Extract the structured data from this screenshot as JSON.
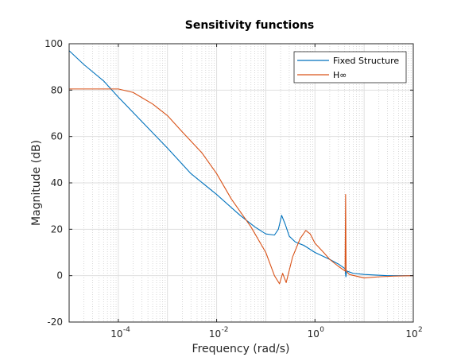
{
  "chart_data": {
    "type": "line",
    "title": "Sensitivity functions",
    "xlabel": "Frequency  (rad/s)",
    "ylabel": "Magnitude (dB)",
    "xscale": "log",
    "xlim": [
      1e-05,
      100
    ],
    "ylim": [
      -20,
      100
    ],
    "x_ticks": [
      {
        "mantissa": "10",
        "exponent": "-4",
        "value": 0.0001
      },
      {
        "mantissa": "10",
        "exponent": "-2",
        "value": 0.01
      },
      {
        "mantissa": "10",
        "exponent": "0",
        "value": 1
      },
      {
        "mantissa": "10",
        "exponent": "2",
        "value": 100
      }
    ],
    "y_ticks": [
      "-20",
      "0",
      "20",
      "40",
      "60",
      "80",
      "100"
    ],
    "grid": true,
    "minor_grid": true,
    "legend_position": "top-right",
    "series": [
      {
        "name": "Fixed Structure",
        "color": "#0072BD",
        "x": [
          1e-05,
          2e-05,
          5e-05,
          0.0001,
          0.0003,
          0.001,
          0.003,
          0.01,
          0.03,
          0.06,
          0.1,
          0.15,
          0.18,
          0.21,
          0.25,
          0.3,
          0.4,
          0.6,
          1,
          2,
          3,
          4.1,
          4.25,
          4.4,
          6,
          10,
          30,
          100
        ],
        "y": [
          97,
          91,
          84,
          77,
          66.5,
          55,
          44,
          35,
          26,
          21,
          18,
          17.5,
          20,
          26,
          22,
          17,
          14.5,
          13,
          10,
          7,
          5,
          3,
          -0.5,
          2,
          1,
          0.5,
          0,
          0
        ]
      },
      {
        "name": "H∞",
        "color": "#D95319",
        "x": [
          1e-05,
          3e-05,
          0.0001,
          0.0002,
          0.0005,
          0.001,
          0.002,
          0.005,
          0.01,
          0.02,
          0.05,
          0.1,
          0.15,
          0.19,
          0.22,
          0.26,
          0.35,
          0.5,
          0.65,
          0.8,
          1,
          1.5,
          2,
          3,
          4.1,
          4.2,
          4.3,
          5,
          10,
          20,
          40,
          100
        ],
        "y": [
          80.5,
          80.5,
          80.5,
          79,
          74,
          69,
          62,
          53,
          44,
          33,
          21,
          10,
          0,
          -3.5,
          1,
          -3,
          8,
          16,
          19.5,
          18,
          14,
          10,
          7,
          4,
          2,
          35,
          2,
          0.5,
          -1,
          -0.5,
          -0.2,
          0
        ]
      }
    ]
  }
}
